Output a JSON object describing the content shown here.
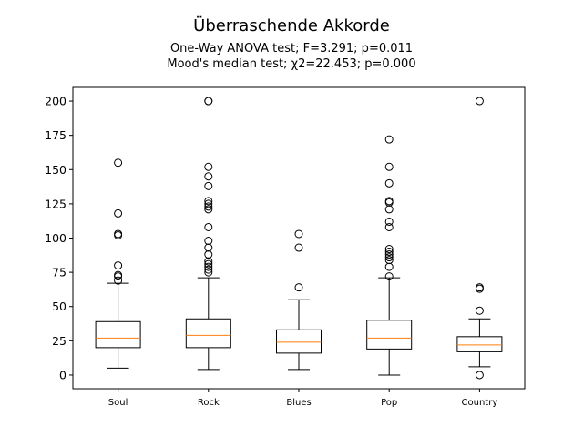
{
  "chart_data": {
    "type": "boxplot",
    "title": "Überraschende Akkorde",
    "subtitle_lines": [
      "One-Way ANOVA test; F=3.291; p=0.011",
      "Mood's median test; χ2=22.453; p=0.000"
    ],
    "xlabel": "",
    "ylabel": "",
    "ylim": [
      -10,
      210
    ],
    "yticks": [
      0,
      25,
      50,
      75,
      100,
      125,
      150,
      175,
      200
    ],
    "categories": [
      "Soul",
      "Rock",
      "Blues",
      "Pop",
      "Country"
    ],
    "boxes": [
      {
        "category": "Soul",
        "whisker_low": 5,
        "q1": 20,
        "median": 27,
        "q3": 39,
        "whisker_high": 67,
        "outliers": [
          69,
          72,
          73,
          80,
          102,
          103,
          118,
          155
        ]
      },
      {
        "category": "Rock",
        "whisker_low": 4,
        "q1": 20,
        "median": 29,
        "q3": 41,
        "whisker_high": 71,
        "outliers": [
          75,
          77,
          79,
          81,
          83,
          88,
          93,
          98,
          108,
          121,
          123,
          125,
          127,
          138,
          145,
          152,
          200,
          200
        ]
      },
      {
        "category": "Blues",
        "whisker_low": 4,
        "q1": 16,
        "median": 24,
        "q3": 33,
        "whisker_high": 55,
        "outliers": [
          64,
          93,
          103
        ]
      },
      {
        "category": "Pop",
        "whisker_low": 0,
        "q1": 19,
        "median": 27,
        "q3": 40,
        "whisker_high": 71,
        "outliers": [
          72,
          79,
          84,
          86,
          88,
          90,
          92,
          108,
          112,
          121,
          126,
          127,
          140,
          152,
          172
        ]
      },
      {
        "category": "Country",
        "whisker_low": 6,
        "q1": 17,
        "median": 22,
        "q3": 28,
        "whisker_high": 41,
        "outliers": [
          0,
          47,
          63,
          64,
          200
        ]
      }
    ],
    "colors": {
      "box": "#000000",
      "median": "#ff7f0e",
      "outlier": "#000000"
    },
    "grid": false,
    "legend": "none"
  }
}
